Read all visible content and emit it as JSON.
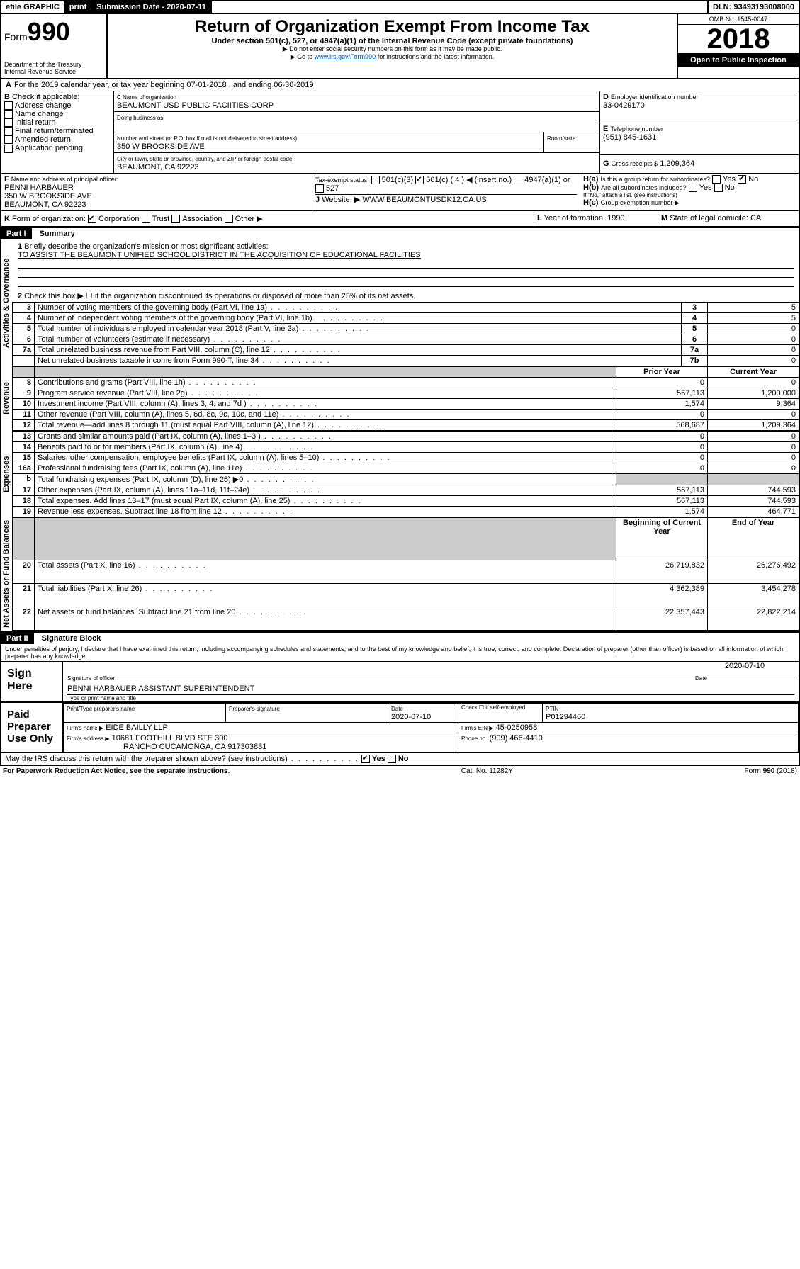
{
  "topbar": {
    "efile": "efile GRAPHIC",
    "print": "print",
    "submission_label": "Submission Date - 2020-07-11",
    "dln": "DLN: 93493193008000"
  },
  "header": {
    "form_prefix": "Form",
    "form_number": "990",
    "dept": "Department of the Treasury\nInternal Revenue Service",
    "title": "Return of Organization Exempt From Income Tax",
    "subtitle": "Under section 501(c), 527, or 4947(a)(1) of the Internal Revenue Code (except private foundations)",
    "note1": "Do not enter social security numbers on this form as it may be made public.",
    "note2_pre": "Go to ",
    "note2_link": "www.irs.gov/Form990",
    "note2_post": " for instructions and the latest information.",
    "omb": "OMB No. 1545-0047",
    "year": "2018",
    "open": "Open to Public Inspection"
  },
  "A": {
    "text": "For the 2019 calendar year, or tax year beginning 07-01-2018   , and ending 06-30-2019"
  },
  "B": {
    "label": "Check if applicable:",
    "opts": [
      "Address change",
      "Name change",
      "Initial return",
      "Final return/terminated",
      "Amended return",
      "Application pending"
    ]
  },
  "C": {
    "name_label": "Name of organization",
    "name": "BEAUMONT USD PUBLIC FACIITIES CORP",
    "dba_label": "Doing business as",
    "addr_label": "Number and street (or P.O. box if mail is not delivered to street address)",
    "room_label": "Room/suite",
    "addr": "350 W BROOKSIDE AVE",
    "city_label": "City or town, state or province, country, and ZIP or foreign postal code",
    "city": "BEAUMONT, CA  92223"
  },
  "D": {
    "label": "Employer identification number",
    "val": "33-0429170"
  },
  "E": {
    "label": "Telephone number",
    "val": "(951) 845-1631"
  },
  "G": {
    "label": "Gross receipts $",
    "val": "1,209,364"
  },
  "F": {
    "label": "Name and address of principal officer:",
    "name": "PENNI HARBAUER",
    "addr1": "350 W BROOKSIDE AVE",
    "addr2": "BEAUMONT, CA  92223"
  },
  "H": {
    "a": "Is this a group return for subordinates?",
    "b": "Are all subordinates included?",
    "b_note": "If \"No,\" attach a list. (see instructions)",
    "c": "Group exemption number ▶",
    "yes": "Yes",
    "no": "No"
  },
  "I": {
    "label": "Tax-exempt status:",
    "o1": "501(c)(3)",
    "o2": "501(c) ( 4 ) ◀ (insert no.)",
    "o3": "4947(a)(1) or",
    "o4": "527"
  },
  "J": {
    "label": "Website: ▶",
    "val": "WWW.BEAUMONTUSDK12.CA.US"
  },
  "K": {
    "label": "Form of organization:",
    "o1": "Corporation",
    "o2": "Trust",
    "o3": "Association",
    "o4": "Other ▶"
  },
  "L": {
    "label": "Year of formation:",
    "val": "1990"
  },
  "M": {
    "label": "State of legal domicile:",
    "val": "CA"
  },
  "part1": {
    "title": "Part I",
    "subtitle": "Summary",
    "q1": "Briefly describe the organization's mission or most significant activities:",
    "a1": "TO ASSIST THE BEAUMONT UNIFIED SCHOOL DISTRICT IN THE ACQUISITION OF EDUCATIONAL FACILITIES",
    "q2": "Check this box ▶ ☐  if the organization discontinued its operations or disposed of more than 25% of its net assets.",
    "lines_simple": [
      {
        "n": "3",
        "t": "Number of voting members of the governing body (Part VI, line 1a)",
        "box": "3",
        "v": "5"
      },
      {
        "n": "4",
        "t": "Number of independent voting members of the governing body (Part VI, line 1b)",
        "box": "4",
        "v": "5"
      },
      {
        "n": "5",
        "t": "Total number of individuals employed in calendar year 2018 (Part V, line 2a)",
        "box": "5",
        "v": "0"
      },
      {
        "n": "6",
        "t": "Total number of volunteers (estimate if necessary)",
        "box": "6",
        "v": "0"
      },
      {
        "n": "7a",
        "t": "Total unrelated business revenue from Part VIII, column (C), line 12",
        "box": "7a",
        "v": "0"
      },
      {
        "n": "",
        "t": "Net unrelated business taxable income from Form 990-T, line 34",
        "box": "7b",
        "v": "0"
      }
    ],
    "col_prior": "Prior Year",
    "col_current": "Current Year",
    "col_begin": "Beginning of Current Year",
    "col_end": "End of Year",
    "revenue": [
      {
        "n": "8",
        "t": "Contributions and grants (Part VIII, line 1h)",
        "p": "0",
        "c": "0"
      },
      {
        "n": "9",
        "t": "Program service revenue (Part VIII, line 2g)",
        "p": "567,113",
        "c": "1,200,000"
      },
      {
        "n": "10",
        "t": "Investment income (Part VIII, column (A), lines 3, 4, and 7d )",
        "p": "1,574",
        "c": "9,364"
      },
      {
        "n": "11",
        "t": "Other revenue (Part VIII, column (A), lines 5, 6d, 8c, 9c, 10c, and 11e)",
        "p": "0",
        "c": "0"
      },
      {
        "n": "12",
        "t": "Total revenue—add lines 8 through 11 (must equal Part VIII, column (A), line 12)",
        "p": "568,687",
        "c": "1,209,364"
      }
    ],
    "expenses": [
      {
        "n": "13",
        "t": "Grants and similar amounts paid (Part IX, column (A), lines 1–3 )",
        "p": "0",
        "c": "0"
      },
      {
        "n": "14",
        "t": "Benefits paid to or for members (Part IX, column (A), line 4)",
        "p": "0",
        "c": "0"
      },
      {
        "n": "15",
        "t": "Salaries, other compensation, employee benefits (Part IX, column (A), lines 5–10)",
        "p": "0",
        "c": "0"
      },
      {
        "n": "16a",
        "t": "Professional fundraising fees (Part IX, column (A), line 11e)",
        "p": "0",
        "c": "0"
      },
      {
        "n": "b",
        "t": "Total fundraising expenses (Part IX, column (D), line 25) ▶0",
        "p": "",
        "c": "",
        "shade": true
      },
      {
        "n": "17",
        "t": "Other expenses (Part IX, column (A), lines 11a–11d, 11f–24e)",
        "p": "567,113",
        "c": "744,593"
      },
      {
        "n": "18",
        "t": "Total expenses. Add lines 13–17 (must equal Part IX, column (A), line 25)",
        "p": "567,113",
        "c": "744,593"
      },
      {
        "n": "19",
        "t": "Revenue less expenses. Subtract line 18 from line 12",
        "p": "1,574",
        "c": "464,771"
      }
    ],
    "netassets": [
      {
        "n": "20",
        "t": "Total assets (Part X, line 16)",
        "p": "26,719,832",
        "c": "26,276,492"
      },
      {
        "n": "21",
        "t": "Total liabilities (Part X, line 26)",
        "p": "4,362,389",
        "c": "3,454,278"
      },
      {
        "n": "22",
        "t": "Net assets or fund balances. Subtract line 21 from line 20",
        "p": "22,357,443",
        "c": "22,822,214"
      }
    ],
    "vlabels": {
      "gov": "Activities & Governance",
      "rev": "Revenue",
      "exp": "Expenses",
      "net": "Net Assets or\nFund Balances"
    }
  },
  "part2": {
    "title": "Part II",
    "subtitle": "Signature Block",
    "decl": "Under penalties of perjury, I declare that I have examined this return, including accompanying schedules and statements, and to the best of my knowledge and belief, it is true, correct, and complete. Declaration of preparer (other than officer) is based on all information of which preparer has any knowledge.",
    "sign_here": "Sign Here",
    "sig_officer": "Signature of officer",
    "sig_date": "2020-07-10",
    "date_label": "Date",
    "officer_name": "PENNI HARBAUER  ASSISTANT SUPERINTENDENT",
    "type_name": "Type or print name and title",
    "paid": "Paid Preparer Use Only",
    "prep_name_label": "Print/Type preparer's name",
    "prep_sig_label": "Preparer's signature",
    "prep_date": "2020-07-10",
    "self_emp": "Check ☐ if self-employed",
    "ptin_label": "PTIN",
    "ptin": "P01294460",
    "firm_name_label": "Firm's name   ▶",
    "firm_name": "EIDE BAILLY LLP",
    "firm_ein_label": "Firm's EIN ▶",
    "firm_ein": "45-0250958",
    "firm_addr_label": "Firm's address ▶",
    "firm_addr1": "10681 FOOTHILL BLVD STE 300",
    "firm_addr2": "RANCHO CUCAMONGA, CA  917303831",
    "phone_label": "Phone no.",
    "phone": "(909) 466-4410",
    "discuss": "May the IRS discuss this return with the preparer shown above? (see instructions)"
  },
  "footer": {
    "pra": "For Paperwork Reduction Act Notice, see the separate instructions.",
    "cat": "Cat. No. 11282Y",
    "form": "Form 990 (2018)"
  }
}
